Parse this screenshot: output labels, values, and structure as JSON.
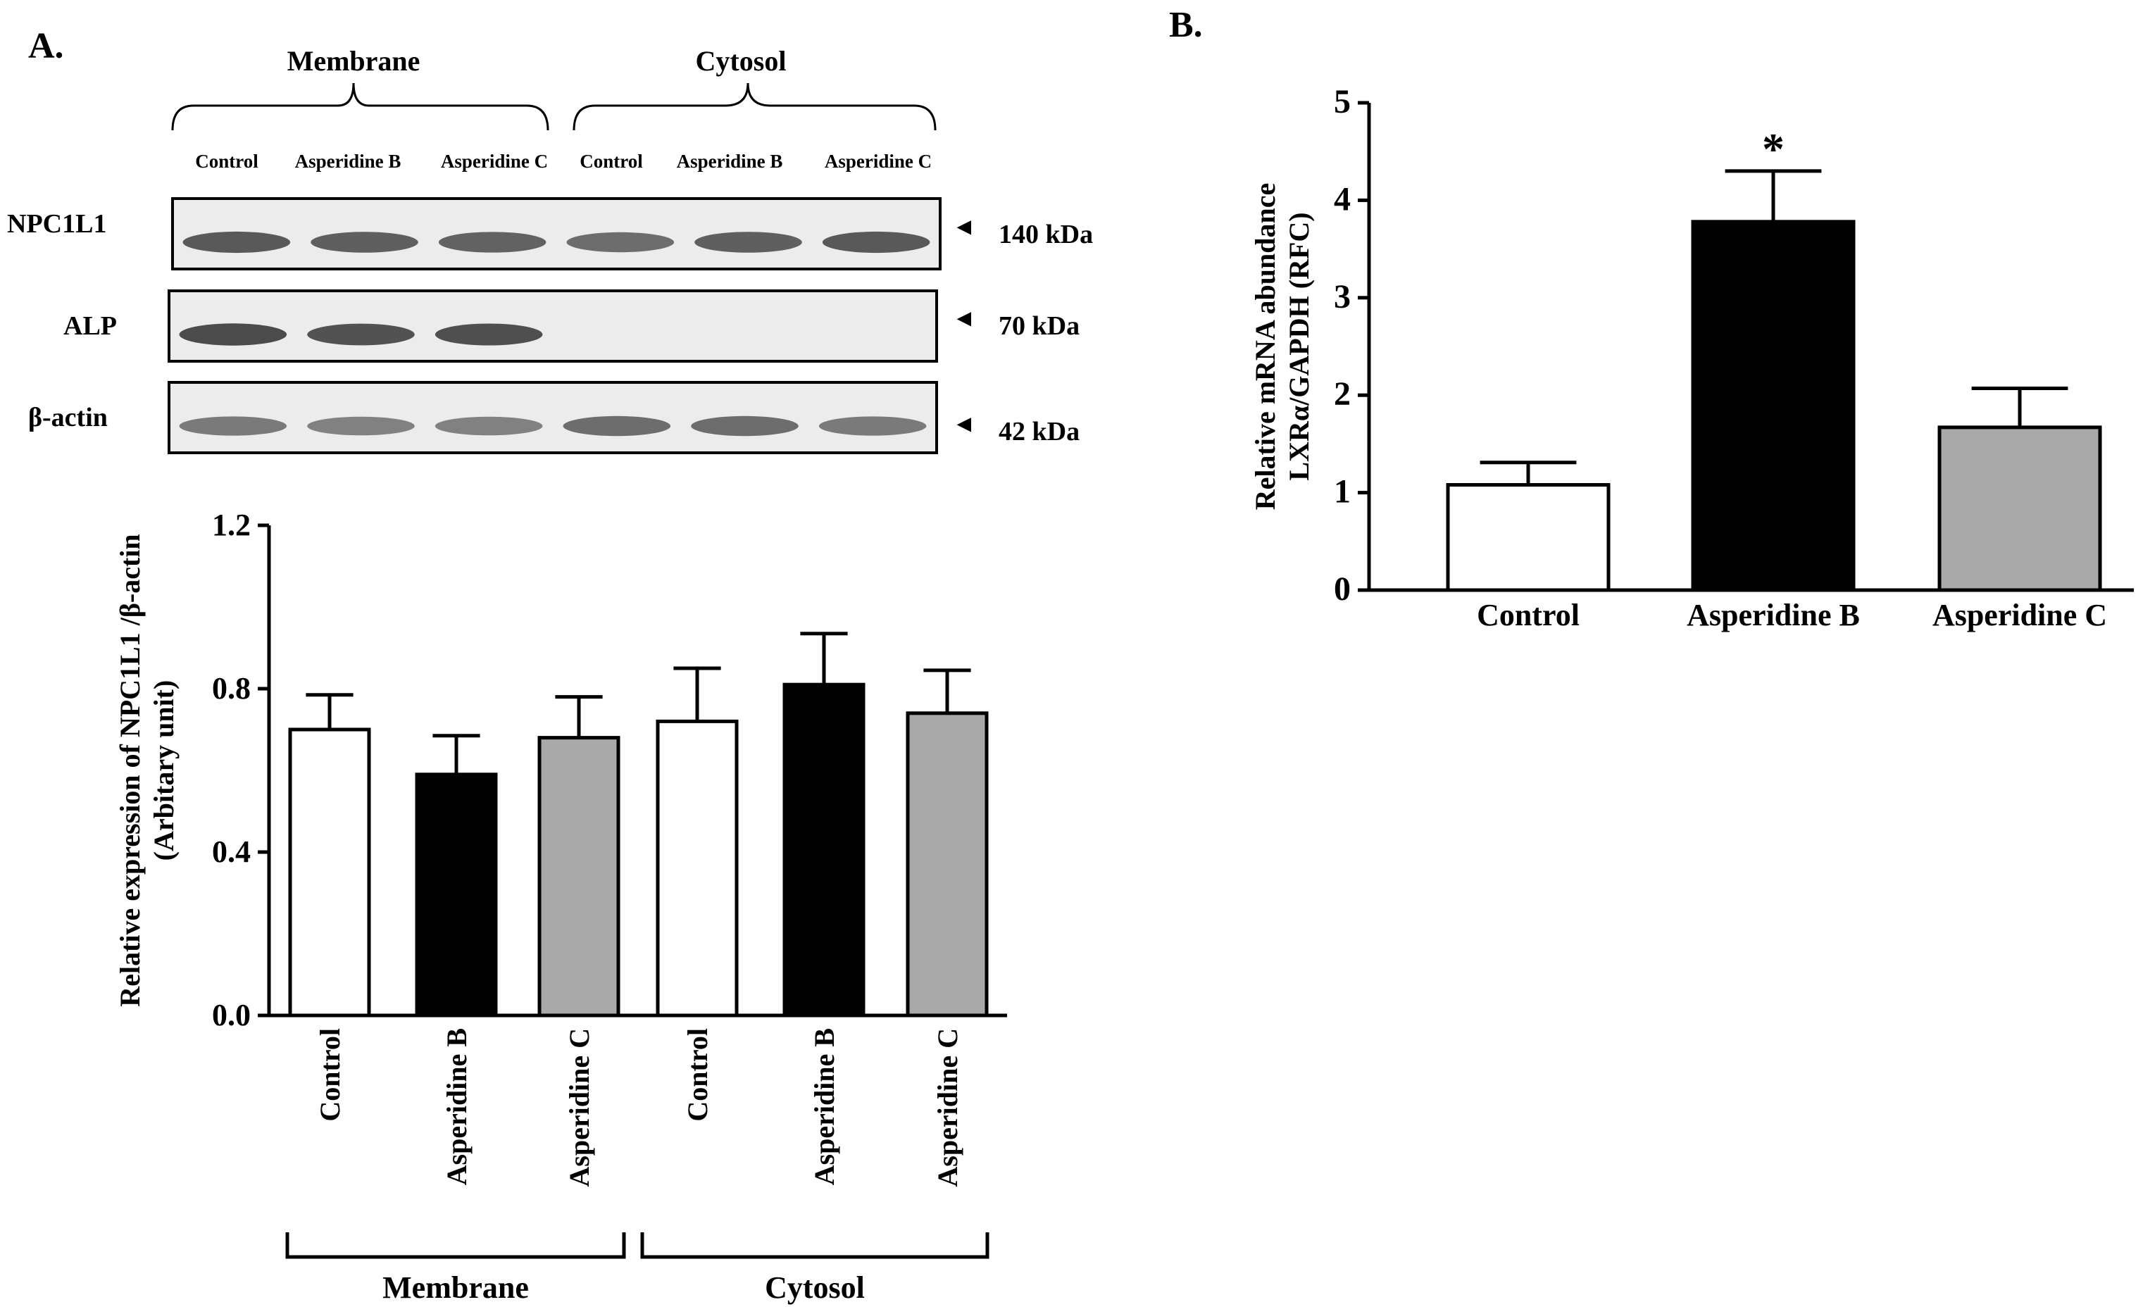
{
  "panel_a": {
    "label": "A.",
    "blot": {
      "group_labels": [
        "Membrane",
        "Cytosol"
      ],
      "lane_labels": [
        "Control",
        "Asperidine B",
        "Asperidine C",
        "Control",
        "Asperidine B",
        "Asperidine C"
      ],
      "rows": [
        {
          "protein": "NPC1L1",
          "marker": "140 kDa",
          "band_intensity": [
            0.85,
            0.8,
            0.78,
            0.7,
            0.8,
            0.85
          ]
        },
        {
          "protein": "ALP",
          "marker": "70 kDa",
          "band_intensity": [
            0.95,
            0.9,
            0.92,
            0.0,
            0.0,
            0.0
          ]
        },
        {
          "protein": "β-actin",
          "marker": "42 kDa",
          "band_intensity": [
            0.6,
            0.55,
            0.55,
            0.7,
            0.7,
            0.6
          ]
        }
      ],
      "arrow_glyph": "◄"
    }
  },
  "panel_b": {
    "label": "B."
  },
  "chart_data": [
    {
      "id": "A",
      "type": "bar",
      "categories": [
        "Control",
        "Asperidine B",
        "Asperidine C",
        "Control",
        "Asperidine B",
        "Asperidine C"
      ],
      "values": [
        0.7,
        0.59,
        0.68,
        0.72,
        0.81,
        0.74
      ],
      "errors": [
        0.085,
        0.095,
        0.1,
        0.13,
        0.125,
        0.105
      ],
      "fills": [
        "#ffffff",
        "#000000",
        "#a9a9a9",
        "#ffffff",
        "#000000",
        "#a9a9a9"
      ],
      "groups": [
        {
          "label": "Membrane",
          "from": 0,
          "to": 2
        },
        {
          "label": "Cytosol",
          "from": 3,
          "to": 5
        }
      ],
      "ylabel": "Relative expression of NPC1L1 /β-actin",
      "ylabel2": "(Arbitary unit)",
      "ylim": [
        0,
        1.2
      ],
      "yticks": [
        "0.0",
        "0.4",
        "0.8",
        "1.2"
      ],
      "grid": false
    },
    {
      "id": "B",
      "type": "bar",
      "categories": [
        "Control",
        "Asperidine B",
        "Asperidine C"
      ],
      "values": [
        1.08,
        3.78,
        1.67
      ],
      "errors": [
        0.23,
        0.52,
        0.4
      ],
      "fills": [
        "#ffffff",
        "#000000",
        "#a9a9a9"
      ],
      "annotations": [
        "",
        "*",
        ""
      ],
      "ylabel": "Relative mRNA abundance",
      "ylabel2": "LXRα/GAPDH (RFC)",
      "ylim": [
        0,
        5
      ],
      "yticks": [
        "0",
        "1",
        "2",
        "3",
        "4",
        "5"
      ],
      "grid": false
    }
  ]
}
